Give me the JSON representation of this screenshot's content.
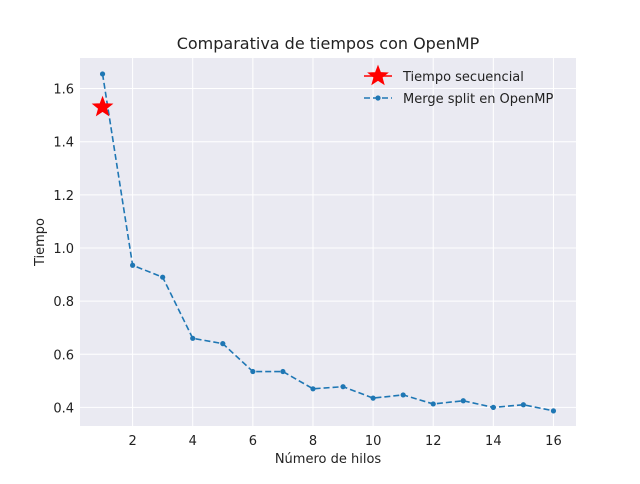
{
  "chart_data": {
    "type": "line",
    "title": "Comparativa de tiempos con OpenMP",
    "xlabel": "Número de hilos",
    "ylabel": "Tiempo",
    "xlim": [
      0.25,
      16.75
    ],
    "ylim": [
      0.33,
      1.715
    ],
    "xticks": [
      2,
      4,
      6,
      8,
      10,
      12,
      14,
      16
    ],
    "yticks": [
      0.4,
      0.6,
      0.8,
      1.0,
      1.2,
      1.4,
      1.6
    ],
    "xtick_labels": [
      "2",
      "4",
      "6",
      "8",
      "10",
      "12",
      "14",
      "16"
    ],
    "ytick_labels": [
      "0.4",
      "0.6",
      "0.8",
      "1.0",
      "1.2",
      "1.4",
      "1.6"
    ],
    "grid": true,
    "legend_position": "top-right",
    "series": [
      {
        "name": "Tiempo secuencial",
        "style": "star-marker",
        "color": "#ff0000",
        "x": [
          1
        ],
        "values": [
          1.53
        ]
      },
      {
        "name": "Merge split en OpenMP",
        "style": "dashed-line-dot-marker",
        "color": "#1f77b4",
        "x": [
          1,
          2,
          3,
          4,
          5,
          6,
          7,
          8,
          9,
          10,
          11,
          12,
          13,
          14,
          15,
          16
        ],
        "values": [
          1.655,
          0.935,
          0.89,
          0.66,
          0.64,
          0.535,
          0.535,
          0.47,
          0.478,
          0.435,
          0.447,
          0.413,
          0.425,
          0.4,
          0.41,
          0.387
        ]
      }
    ]
  },
  "colors": {
    "plot_background": "#eaeaf2",
    "grid": "#ffffff"
  }
}
